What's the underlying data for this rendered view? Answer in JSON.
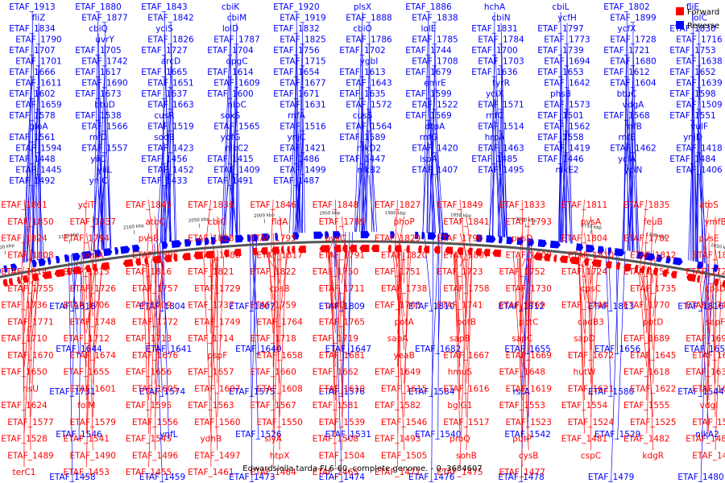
{
  "caption": "Edwardsiella tarda FL6-60, complete genome. - 0..3684607",
  "legend": [
    {
      "label": "Forward",
      "color": "#ff0000"
    },
    {
      "label": "Reverse",
      "color": "#0000ff"
    }
  ],
  "colors": {
    "forward": "#ff0000",
    "reverse": "#0000ff",
    "axis": "#555555"
  },
  "axis_ticks": [
    "2200 kbp",
    "2150 kbp",
    "2100 kbp",
    "2050 kbp",
    "2000 kbp",
    "1950 kbp",
    "1900 kbp",
    "1850 kbp",
    "1800 kbp",
    "1750 kbp",
    "1700 kbp",
    "1650 kbp"
  ],
  "reverse_labels": [
    "ETAF_1913",
    "ETAF_1880",
    "ETAF_1843",
    "cbiK",
    "ETAF_1920",
    "plsX",
    "ETAF_1886",
    "hchA",
    "cbiL",
    "ETAF_1802",
    "fliE",
    "fliZ",
    "ETAF_1877",
    "ETAF_1842",
    "cbiM",
    "ETAF_1919",
    "ETAF_1888",
    "ETAF_1838",
    "cbiN",
    "ycfH",
    "ETAF_1899",
    "lolC",
    "ETAF_1834",
    "cbiQ",
    "yciS",
    "lolD",
    "ETAF_1832",
    "cbiO",
    "lolE",
    "ETAF_1831",
    "ETAF_1797",
    "ycfX",
    "ETAF_1830",
    "ETAF_1790",
    "uvrY",
    "ETAF_1826",
    "ETAF_1787",
    "ETAF_1825",
    "ETAF_1786",
    "ETAF_1785",
    "ETAF_1784",
    "ETAF_1773",
    "ETAF_1728",
    "ETAF_1716",
    "ETAF_1707",
    "ETAF_1705",
    "ETAF_1727",
    "ETAF_1704",
    "ETAF_1756",
    "ETAF_1702",
    "ETAF_1744",
    "ETAF_1700",
    "ETAF_1739",
    "ETAF_1721",
    "ETAF_1753",
    "ETAF_1701",
    "ETAF_1742",
    "arcD",
    "opgC",
    "ETAF_1715",
    "ygbI",
    "ETAF_1708",
    "ETAF_1703",
    "ETAF_1694",
    "ETAF_1680",
    "ETAF_1638",
    "ETAF_1666",
    "ETAF_1617",
    "ETAF_1665",
    "ETAF_1614",
    "ETAF_1654",
    "ETAF_1613",
    "ETAF_1679",
    "ETAF_1636",
    "ETAF_1653",
    "ETAF_1612",
    "ETAF_1652",
    "ETAF_1611",
    "ETAF_1690",
    "ETAF_1651",
    "ETAF_1609",
    "ETAF_1677",
    "ETAF_1643",
    "emrE",
    "tyrR",
    "ETAF_1642",
    "ETAF_1604",
    "ETAF_1639",
    "ETAF_1602",
    "ETAF_1673",
    "ETAF_1637",
    "ETAF_1600",
    "ETAF_1671",
    "ETAF_1635",
    "ETAF_1599",
    "yciX",
    "phsB",
    "btuC",
    "ETAF_1598",
    "ETAF_1659",
    "btuD",
    "ETAF_1663",
    "nlpC",
    "ETAF_1631",
    "ETAF_1572",
    "ETAF_1522",
    "ETAF_1571",
    "ETAF_1573",
    "vdgA",
    "ETAF_1509",
    "ETAF_1578",
    "ETAF_1538",
    "cusR",
    "soxS",
    "rnfA",
    "cusS",
    "ETAF_1569",
    "rnfC",
    "ETAF_1501",
    "ETAF_1568",
    "ETAF_1551",
    "gloA",
    "ETAF_1566",
    "ETAF_1519",
    "ETAF_1565",
    "ETAF_1516",
    "ETAF_1564",
    "dtpA",
    "ETAF_1514",
    "ETAF_1562",
    "rnfB",
    "vulF",
    "ETAF_1561",
    "rnfD",
    "sodB",
    "ydfG",
    "ynjC",
    "ETAF_1589",
    "rnfG",
    "hrpA",
    "ETAF_1558",
    "rnfE",
    "ynjD",
    "ETAF_1594",
    "ETAF_1557",
    "ETAF_1423",
    "nikC2",
    "ETAF_1421",
    "nikD2",
    "ETAF_1420",
    "ETAF_1463",
    "ETAF_1419",
    "ETAF_1462",
    "ETAF_1418",
    "ETAF_1448",
    "yiiC",
    "ETAF_1456",
    "ETAF_1415",
    "ETAF_1486",
    "ETAF_1447",
    "lspA",
    "ETAF_1485",
    "ETAF_1446",
    "yciA",
    "ETAF_1484",
    "ETAF_1445",
    "yiiL",
    "ETAF_1452",
    "ETAF_1409",
    "ETAF_1499",
    "nikB2",
    "ETAF_1407",
    "ETAF_1495",
    "nikE2",
    "yciN",
    "ETAF_1406",
    "ETAF_1492",
    "yniC",
    "ETAF_1433",
    "ETAF_1491",
    "ETAF_1487"
  ],
  "forward_labels": [
    "ETAF_1861",
    "yciT",
    "ETAF_1845",
    "ETAF_1836",
    "ETAF_1846",
    "ETAF_1848",
    "ETAF_1827",
    "ETAF_1849",
    "ETAF_1833",
    "ETAF_1811",
    "ETAF_1835",
    "atoS",
    "ETAF_1850",
    "ETAF_1837",
    "atoC",
    "cbiG",
    "fldA",
    "ETAF_1789",
    "phoP",
    "ETAF_1841",
    "ETAF_1793",
    "pvsA",
    "feuB",
    "ymfB",
    "ETAF_1824",
    "ETAF_1794",
    "pvsB",
    "ETAF_1828",
    "ETAF_1795",
    "pvsC",
    "ETAF_1829",
    "ETAF_1796",
    "pvsD",
    "ETAF_1804",
    "ETAF_1782",
    "pvsE",
    "ETAF_1808",
    "pvuA",
    "ETAF_1805",
    "ETAF_1788",
    "ETAF_1817",
    "ETAF_1791",
    "ETAF_1820",
    "ETAF_1807",
    "ETAF_1809",
    "ETAF_1810",
    "ETAF_1812",
    "ETAF_1813",
    "ETAF_1814",
    "ETAF_1815",
    "ETAF_1816",
    "ETAF_1821",
    "ETAF_1822",
    "ETAF_1750",
    "ETAF_1751",
    "ETAF_1723",
    "ETAF_1752",
    "ETAF_1724",
    "ETAF_1754",
    "ETAF_1725",
    "ETAF_1755",
    "ETAF_1726",
    "ETAF_1757",
    "ETAF_1729",
    "cpsB",
    "ETAF_1711",
    "ETAF_1738",
    "ETAF_1758",
    "ETAF_1730",
    "cpsC",
    "ETAF_1735",
    "cpsD",
    "ETAF_1736",
    "ETAF_1706",
    "ETAF_1709",
    "ETAF_1737",
    "ETAF_1759",
    "uptG",
    "ETAF_1763",
    "ETAF_1741",
    "ETAF_1769",
    "ETAF_1746",
    "ETAF_1770",
    "ETAF_1747",
    "ETAF_1771",
    "ETAF_1748",
    "ETAF_1772",
    "ETAF_1749",
    "ETAF_1764",
    "ETAF_1765",
    "potA",
    "potB",
    "potC",
    "cadB3",
    "potD",
    "sapF",
    "ETAF_1710",
    "ETAF_1712",
    "ETAF_1713",
    "ETAF_1714",
    "ETAF_1718",
    "ETAF_1719",
    "sapA",
    "sapB",
    "sapC",
    "sapD",
    "ETAF_1689",
    "ETAF_1691",
    "ETAF_1670",
    "ETAF_1674",
    "ETAF_1676",
    "pspF",
    "ETAF_1658",
    "ETAF_1681",
    "yeaB",
    "ETAF_1667",
    "ETAF_1669",
    "ETAF_1672",
    "ETAF_1645",
    "ETAF_1646",
    "ETAF_1650",
    "ETAF_1655",
    "ETAF_1656",
    "ETAF_1657",
    "ETAF_1660",
    "ETAF_1662",
    "ETAF_1649",
    "hmuS",
    "ETAF_1648",
    "hutW",
    "ETAF_1618",
    "ETAF_1630",
    "hsU",
    "ETAF_1601",
    "ETAF_1605",
    "ETAF_1607",
    "ETAF_1608",
    "ETAF_1610",
    "ETAF_1615",
    "ETAF_1616",
    "ETAF_1619",
    "ETAF_1621",
    "ETAF_1622",
    "ETAF_1623",
    "ETAF_1624",
    "folM",
    "ETAF_1595",
    "ETAF_1563",
    "ETAF_1567",
    "ETAF_1581",
    "ETAF_1582",
    "bglG1",
    "ETAF_1553",
    "ETAF_1554",
    "ETAF_1555",
    "vdgI",
    "ETAF_1577",
    "ETAF_1579",
    "ETAF_1556",
    "ETAF_1560",
    "ETAF_1550",
    "ETAF_1539",
    "ETAF_1546",
    "ETAF_1517",
    "ETAF_1523",
    "ETAF_1524",
    "ETAF_1525",
    "ETAF_1527",
    "ETAF_1528",
    "ETAF_1541",
    "ETAF_1545",
    "ydhB",
    "slyA",
    "ETAF_1508",
    "ETAF_1493",
    "proQ",
    "putP",
    "ETAF_1481",
    "ETAF_1482",
    "ETAF_1488",
    "ETAF_1489",
    "ETAF_1490",
    "ETAF_1496",
    "ETAF_1497",
    "htpX",
    "ETAF_1504",
    "ETAF_1505",
    "sohB",
    "cysB",
    "cspC",
    "kdgR",
    "ETAF_1472",
    "terC1",
    "ETAF_1453",
    "ETAF_1455",
    "ETAF_1461",
    "ETAF_1464",
    "ETAF_1465",
    "ETAF_1471",
    "ETAF_1475",
    "ETAF_1477"
  ],
  "reverse_lower_labels": [
    "ETAF_1818",
    "ETAF_1804",
    "ETAF_1807",
    "ETAF_1809",
    "ETAF_1810",
    "ETAF_1812",
    "ETAF_1813",
    "ETAF_1816",
    "ETAF_1644",
    "ETAF_1641",
    "ETAF_1640",
    "ETAF_1647",
    "ETAF_1682",
    "ETAF_1655",
    "ETAF_1656",
    "ETAF_1657",
    "ETAF_1731",
    "ETAF_1574",
    "ETAF_1575",
    "ETAF_1576",
    "ETAF_1584",
    "rstA",
    "ETAF_1580",
    "ETAF_1544",
    "ETAF_1546",
    "ynfL",
    "ETAF_1526",
    "ETAF_1531",
    "ETAF_1540",
    "ETAF_1542",
    "ETAF_1529",
    "nikA2",
    "ETAF_1458",
    "ETAF_1459",
    "ETAF_1473",
    "ETAF_1474",
    "ETAF_1476",
    "ETAF_1478",
    "ETAF_1479",
    "ETAF_1480"
  ]
}
